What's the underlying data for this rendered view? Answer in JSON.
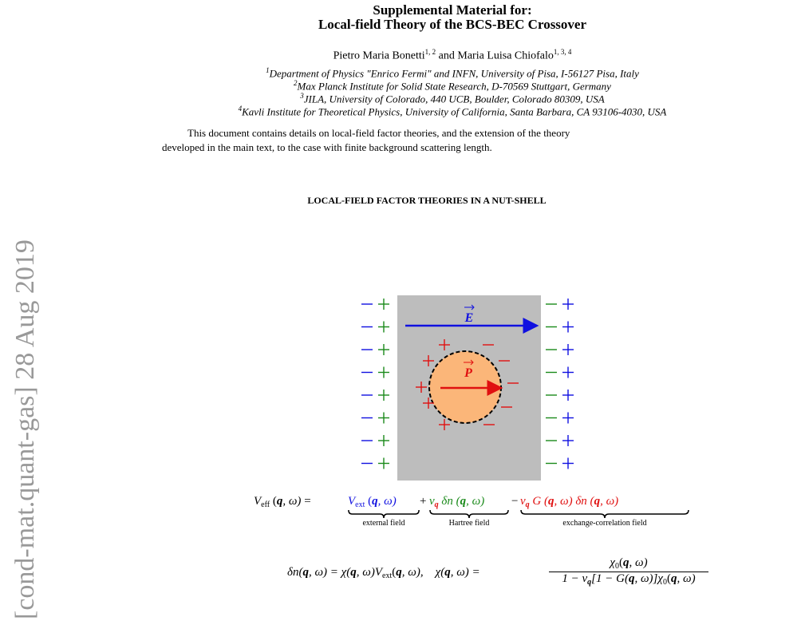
{
  "arxiv_stamp": "[cond-mat.quant-gas]  28 Aug 2019",
  "header": {
    "title_line_1": "Supplemental Material for:",
    "title_line_2": "Local-field Theory of the BCS-BEC Crossover"
  },
  "authors": [
    {
      "name": "Pietro Maria Bonetti",
      "affiliations": "1, 2"
    },
    {
      "name": "Maria Luisa Chiofalo",
      "affiliations": "1, 3, 4"
    }
  ],
  "author_separator": "and",
  "affiliations": [
    {
      "number": "1",
      "text": "Department of Physics \"Enrico Fermi\" and INFN, University of Pisa, I-56127 Pisa, Italy"
    },
    {
      "number": "2",
      "text": "Max Planck Institute for Solid State Research, D-70569 Stuttgart, Germany"
    },
    {
      "number": "3",
      "text": "JILA, University of Colorado, 440 UCB, Boulder, Colorado 80309, USA"
    },
    {
      "number": "4",
      "text": "Kavli Institute for Theoretical Physics, University of California, Santa Barbara, CA 93106-4030, USA"
    }
  ],
  "abstract": [
    "This document contains details on local-field factor theories, and the extension of the theory",
    "developed in the main text, to the case with finite background scattering length."
  ],
  "section_heading": "LOCAL-FIELD FACTOR THEORIES IN A NUT-SHELL",
  "figure": {
    "field_label": "E",
    "polarization_label": "P"
  },
  "equation_1": {
    "lhs": [
      "V",
      "eff",
      "(",
      "q",
      ", ω)",
      "="
    ],
    "terms": [
      {
        "parts": [
          "V",
          "ext",
          "(",
          "q",
          ", ω)"
        ],
        "label": "external field"
      },
      {
        "operator": "+",
        "parts": [
          "v",
          "q",
          "δn (",
          "q",
          ", ω)"
        ],
        "label": "Hartree field"
      },
      {
        "operator": "−",
        "parts": [
          "v",
          "q",
          "G (",
          "q",
          ", ω) δn (",
          "q",
          ", ω)"
        ],
        "label": "exchange-correlation field"
      }
    ]
  },
  "equation_2": {
    "left": [
      "δn(",
      "q",
      ", ω) = χ(",
      "q",
      ", ω)V",
      "ext",
      "(",
      "q",
      ", ω),"
    ],
    "right": [
      "χ(",
      "q",
      ", ω) ="
    ],
    "numerator": [
      "χ",
      "0",
      "(",
      "q",
      ", ω)"
    ],
    "denominator": [
      "1 − v",
      "q",
      "[1 − G(",
      "q",
      ", ω)]χ",
      "0",
      "(",
      "q",
      ", ω)"
    ]
  }
}
